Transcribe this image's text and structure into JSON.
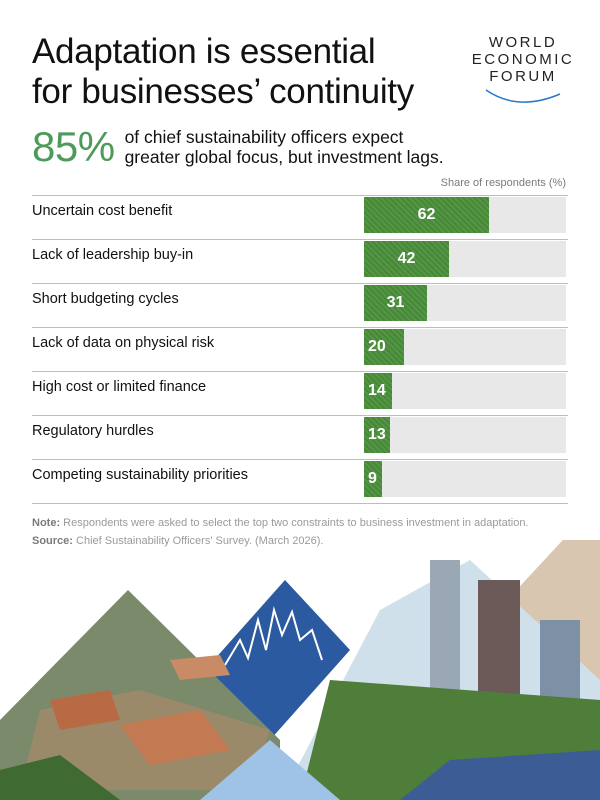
{
  "title": {
    "line1": "Adaptation is essential",
    "line2": "for businesses’ continuity"
  },
  "logo": {
    "line1": "WORLD",
    "line2": "ECONOMIC",
    "line3": "FORUM"
  },
  "stat": {
    "value": "85%",
    "text": "of chief sustainability officers expect greater global focus, but investment lags."
  },
  "chart_data": {
    "type": "bar",
    "orientation": "horizontal",
    "axis_label": "Share of respondents (%)",
    "xlim": [
      0,
      100
    ],
    "categories": [
      "Uncertain cost benefit",
      "Lack of leadership buy-in",
      "Short budgeting cycles",
      "Lack of data on physical risk",
      "High cost or limited finance",
      "Regulatory hurdles",
      "Competing sustainability priorities"
    ],
    "values": [
      62,
      42,
      31,
      20,
      14,
      13,
      9
    ],
    "bar_color": "#4a8f3a",
    "track_color": "#e8e8e8"
  },
  "note": {
    "note_label": "Note:",
    "note_text": " Respondents were asked to select the top two constraints to business investment in adaptation.",
    "source_label": "Source:",
    "source_text": " Chief Sustainability Officers' Survey. (March 2026)."
  }
}
